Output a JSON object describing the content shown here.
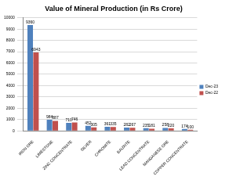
{
  "chart_data": {
    "type": "bar",
    "title": "Value of Mineral Production (in Rs Crore)",
    "categories": [
      "IRON ORE",
      "LIMESTONE",
      "ZINC CONCENTRATE",
      "SILVER",
      "CHROMITE",
      "BAUXITE",
      "LEAD CONCENTRATE",
      "MANGANESE ORE",
      "COPPER CONCENTRATE"
    ],
    "series": [
      {
        "name": "Dec-23",
        "color": "#4f81bd",
        "values": [
          9360,
          984,
          710,
          452,
          361,
          282,
          235,
          258,
          174
        ]
      },
      {
        "name": "Dec-22",
        "color": "#c0504d",
        "values": [
          6943,
          887,
          746,
          305,
          335,
          267,
          181,
          220,
          100
        ]
      }
    ],
    "ylim": [
      0,
      10000
    ],
    "yticks": [
      0,
      1000,
      2000,
      3000,
      4000,
      5000,
      6000,
      7000,
      8000,
      9000,
      10000
    ],
    "grid": true,
    "legend": "right",
    "data_labels": true
  }
}
